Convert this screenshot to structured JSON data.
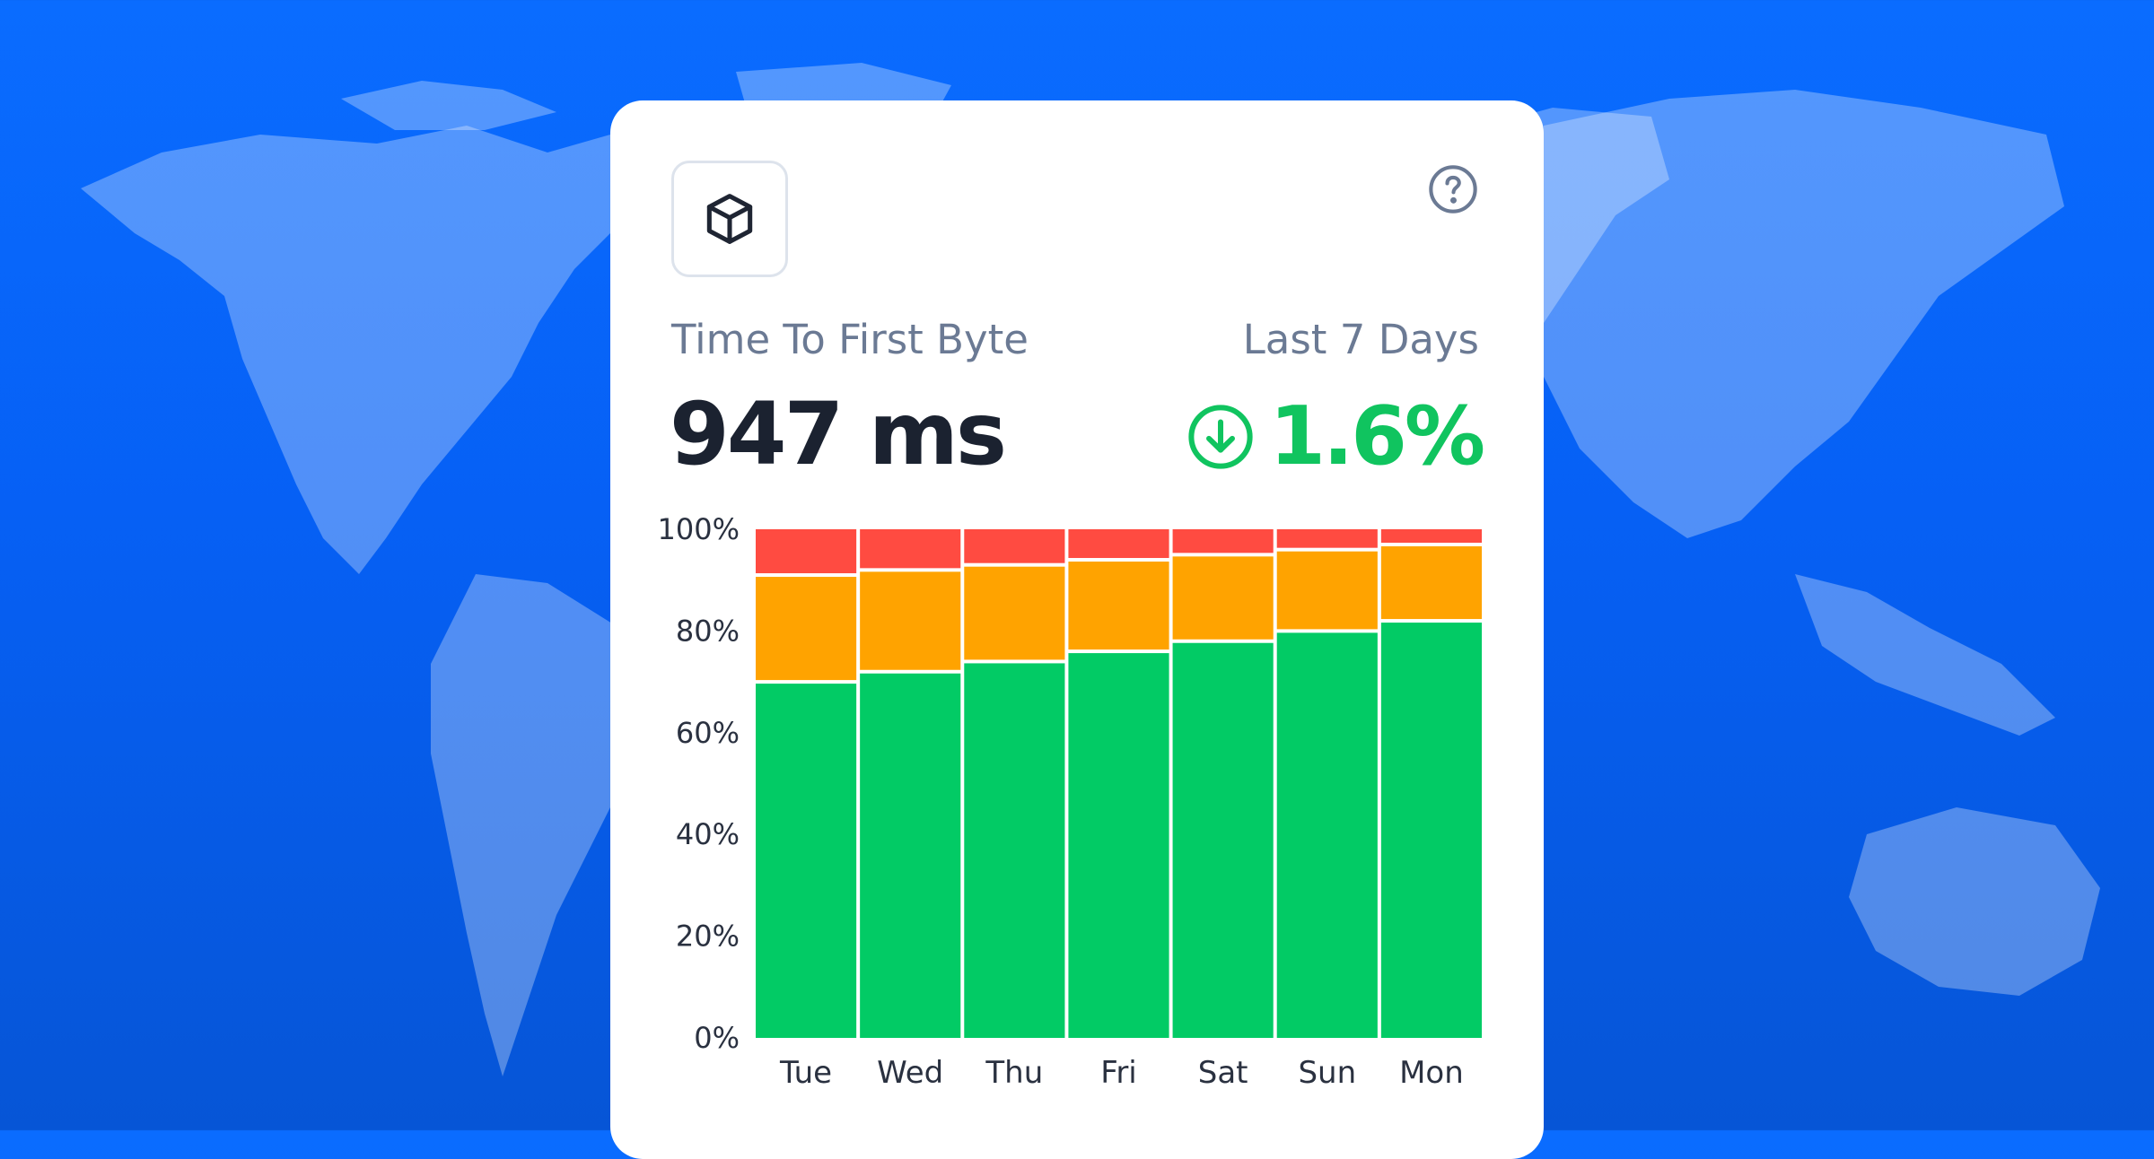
{
  "colors": {
    "background": "#0760f2",
    "card": "#ffffff",
    "good": "#02cb65",
    "needs_improvement": "#ffa300",
    "poor": "#ff4b41",
    "positive_change": "#10c45f"
  },
  "icons": {
    "metric": "cube-icon",
    "help": "question-circle-icon",
    "change": "arrow-down-circle-icon"
  },
  "card": {
    "metric_title": "Time To First Byte",
    "period": "Last 7 Days",
    "metric_value": "947 ms",
    "change_value": "1.6%"
  },
  "chart_data": {
    "type": "bar",
    "stacked": true,
    "categories": [
      "Tue",
      "Wed",
      "Thu",
      "Fri",
      "Sat",
      "Sun",
      "Mon"
    ],
    "series": [
      {
        "color": "#02cb65",
        "values": [
          70,
          72,
          74,
          76,
          78,
          80,
          82
        ]
      },
      {
        "color": "#ffa300",
        "values": [
          21,
          20,
          19,
          18,
          17,
          16,
          15
        ]
      },
      {
        "color": "#ff4b41",
        "values": [
          9,
          8,
          7,
          6,
          5,
          4,
          3
        ]
      }
    ],
    "ylim": [
      0,
      100
    ],
    "yticks": [
      "0%",
      "20%",
      "40%",
      "60%",
      "80%",
      "100%"
    ],
    "grid": false,
    "legend": "none"
  }
}
